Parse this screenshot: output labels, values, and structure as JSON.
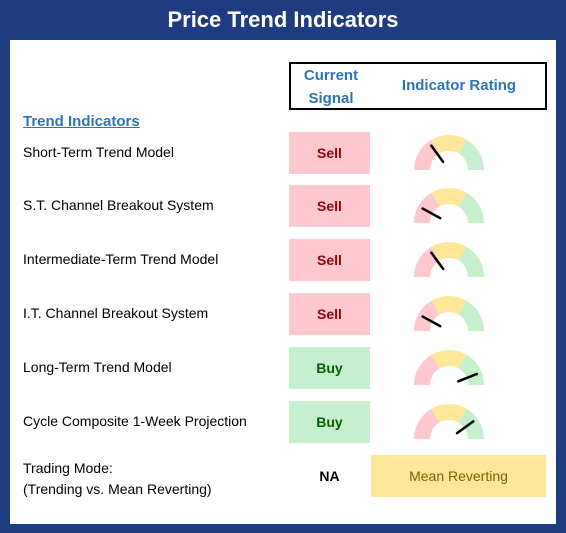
{
  "title": "Price Trend Indicators",
  "header": {
    "current_signal_line1": "Current",
    "current_signal_line2": "Signal",
    "indicator_rating": "Indicator Rating"
  },
  "section_title": "Trend Indicators",
  "rows": [
    {
      "label": "Short-Term Trend Model",
      "signal": "Sell",
      "rating": 0.3
    },
    {
      "label": "S.T. Channel Breakout System",
      "signal": "Sell",
      "rating": 0.16
    },
    {
      "label": "Intermediate-Term Trend Model",
      "signal": "Sell",
      "rating": 0.3
    },
    {
      "label": "I.T. Channel Breakout System",
      "signal": "Sell",
      "rating": 0.16
    },
    {
      "label": "Long-Term Trend Model",
      "signal": "Buy",
      "rating": 0.88
    },
    {
      "label": "Cycle Composite 1-Week Projection",
      "signal": "Buy",
      "rating": 0.8
    }
  ],
  "trading_mode": {
    "label_line1": "Trading Mode:",
    "label_line2": "(Trending vs. Mean Reverting)",
    "signal": "NA",
    "value": "Mean Reverting"
  },
  "colors": {
    "frame": "#1f3c82",
    "header_text": "#2e75b6",
    "sell_bg": "#ffc7ce",
    "sell_text": "#9c0006",
    "buy_bg": "#c6efce",
    "buy_text": "#006100",
    "neutral_bg": "#ffe699",
    "neutral_text": "#7f6000",
    "gauge_red": "#ffc7ce",
    "gauge_yellow": "#ffe699",
    "gauge_green": "#c6efce"
  }
}
